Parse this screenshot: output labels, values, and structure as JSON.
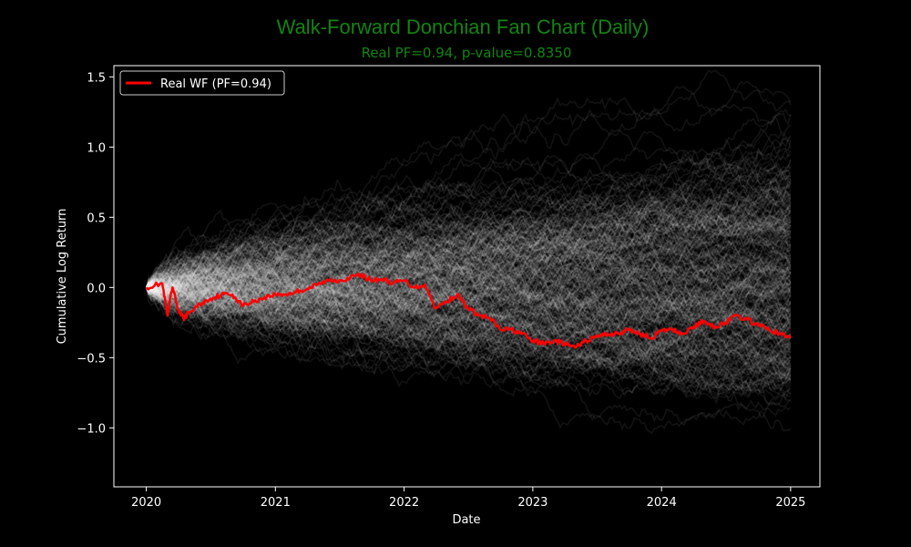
{
  "chart_data": {
    "type": "line",
    "title": "Walk-Forward Donchian Fan Chart (Daily)",
    "subtitle": "Real PF=0.94, p-value=0.8350",
    "xlabel": "Date",
    "ylabel": "Cumulative Log Return",
    "xlim": [
      "2019-10-01",
      "2025-03-25"
    ],
    "ylim": [
      -1.42,
      1.58
    ],
    "x_ticks": [
      "2020",
      "2021",
      "2022",
      "2023",
      "2024",
      "2025"
    ],
    "y_ticks": [
      "1.5",
      "1.0",
      "0.5",
      "0.0",
      "−0.5",
      "−1.0"
    ],
    "y_tick_values": [
      1.5,
      1.0,
      0.5,
      0.0,
      -0.5,
      -1.0
    ],
    "grid": false,
    "legend_position": "top-left",
    "series": [
      {
        "name": "Real WF (PF=0.94)",
        "color": "#ff0000",
        "x": [
          "2020-01-01",
          "2020-02-15",
          "2020-03-01",
          "2020-03-15",
          "2020-04-01",
          "2020-04-15",
          "2020-05-01",
          "2020-06-01",
          "2020-07-01",
          "2020-08-01",
          "2020-09-01",
          "2020-10-01",
          "2020-11-01",
          "2020-12-01",
          "2021-01-01",
          "2021-02-01",
          "2021-03-01",
          "2021-04-01",
          "2021-05-01",
          "2021-06-01",
          "2021-07-01",
          "2021-08-01",
          "2021-09-01",
          "2021-10-01",
          "2021-11-01",
          "2021-12-01",
          "2022-01-01",
          "2022-02-01",
          "2022-03-01",
          "2022-04-01",
          "2022-05-01",
          "2022-06-01",
          "2022-07-01",
          "2022-08-01",
          "2022-09-01",
          "2022-10-01",
          "2022-11-01",
          "2022-12-01",
          "2023-01-01",
          "2023-02-01",
          "2023-03-01",
          "2023-04-01",
          "2023-05-01",
          "2023-06-01",
          "2023-07-01",
          "2023-08-01",
          "2023-09-01",
          "2023-10-01",
          "2023-11-01",
          "2023-12-01",
          "2024-01-01",
          "2024-02-01",
          "2024-03-01",
          "2024-04-01",
          "2024-05-01",
          "2024-06-01",
          "2024-07-01",
          "2024-08-01",
          "2024-09-01",
          "2024-10-01",
          "2024-11-01",
          "2024-12-01",
          "2025-01-01"
        ],
        "y": [
          0.0,
          0.03,
          -0.2,
          0.0,
          -0.16,
          -0.22,
          -0.18,
          -0.12,
          -0.08,
          -0.05,
          -0.05,
          -0.13,
          -0.1,
          -0.07,
          -0.05,
          -0.05,
          -0.03,
          -0.01,
          0.02,
          0.05,
          0.05,
          0.07,
          0.09,
          0.05,
          0.06,
          0.03,
          0.05,
          0.0,
          0.02,
          -0.15,
          -0.1,
          -0.05,
          -0.15,
          -0.2,
          -0.22,
          -0.3,
          -0.3,
          -0.33,
          -0.38,
          -0.4,
          -0.38,
          -0.4,
          -0.43,
          -0.38,
          -0.35,
          -0.33,
          -0.33,
          -0.3,
          -0.33,
          -0.36,
          -0.31,
          -0.3,
          -0.33,
          -0.28,
          -0.24,
          -0.28,
          -0.25,
          -0.2,
          -0.23,
          -0.27,
          -0.3,
          -0.33,
          -0.36
        ]
      }
    ],
    "background_series": {
      "description": "simulated walk-forward paths (white, low alpha)",
      "color": "#ffffff",
      "count": 300,
      "start": "2020-01-01",
      "end": "2025-01-01",
      "spread_at_end": [
        -1.27,
        1.38
      ]
    }
  }
}
